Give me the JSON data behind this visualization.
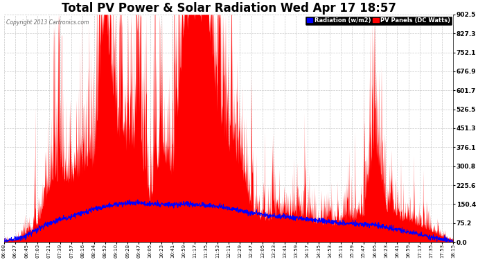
{
  "title": "Total PV Power & Solar Radiation Wed Apr 17 18:57",
  "copyright": "Copyright 2013 Cartronics.com",
  "legend_labels": [
    "Radiation (w/m2)",
    "PV Panels (DC Watts)"
  ],
  "legend_colors": [
    "blue",
    "red"
  ],
  "y_ticks": [
    0.0,
    75.2,
    150.4,
    225.6,
    300.8,
    376.1,
    451.3,
    526.5,
    601.7,
    676.9,
    752.1,
    827.3,
    902.5
  ],
  "ymax": 902.5,
  "ymin": 0.0,
  "background_color": "#ffffff",
  "plot_bg_color": "#ffffff",
  "grid_color": "#c8c8c8",
  "fill_color": "red",
  "line_color": "blue",
  "title_fontsize": 12,
  "x_labels": [
    "06:08",
    "06:27",
    "06:45",
    "07:03",
    "07:21",
    "07:39",
    "07:57",
    "08:16",
    "08:34",
    "08:52",
    "09:10",
    "09:28",
    "09:47",
    "10:05",
    "10:23",
    "10:41",
    "10:59",
    "11:17",
    "11:35",
    "11:53",
    "12:11",
    "12:29",
    "12:47",
    "13:05",
    "13:23",
    "13:41",
    "13:59",
    "14:17",
    "14:35",
    "14:53",
    "15:11",
    "15:29",
    "15:47",
    "16:05",
    "16:23",
    "16:41",
    "16:59",
    "17:17",
    "17:35",
    "17:53",
    "18:15"
  ],
  "pv_base": [
    2,
    8,
    25,
    60,
    200,
    250,
    220,
    260,
    300,
    890,
    430,
    340,
    380,
    120,
    350,
    250,
    820,
    860,
    880,
    500,
    340,
    290,
    120,
    80,
    90,
    100,
    90,
    80,
    70,
    60,
    70,
    80,
    100,
    380,
    120,
    90,
    75,
    60,
    40,
    20,
    5
  ],
  "rad_base": [
    5,
    12,
    25,
    50,
    75,
    90,
    100,
    115,
    130,
    140,
    150,
    155,
    155,
    150,
    150,
    148,
    150,
    148,
    145,
    140,
    135,
    125,
    115,
    110,
    105,
    100,
    95,
    90,
    85,
    80,
    75,
    72,
    70,
    68,
    60,
    50,
    40,
    30,
    20,
    10,
    3
  ]
}
